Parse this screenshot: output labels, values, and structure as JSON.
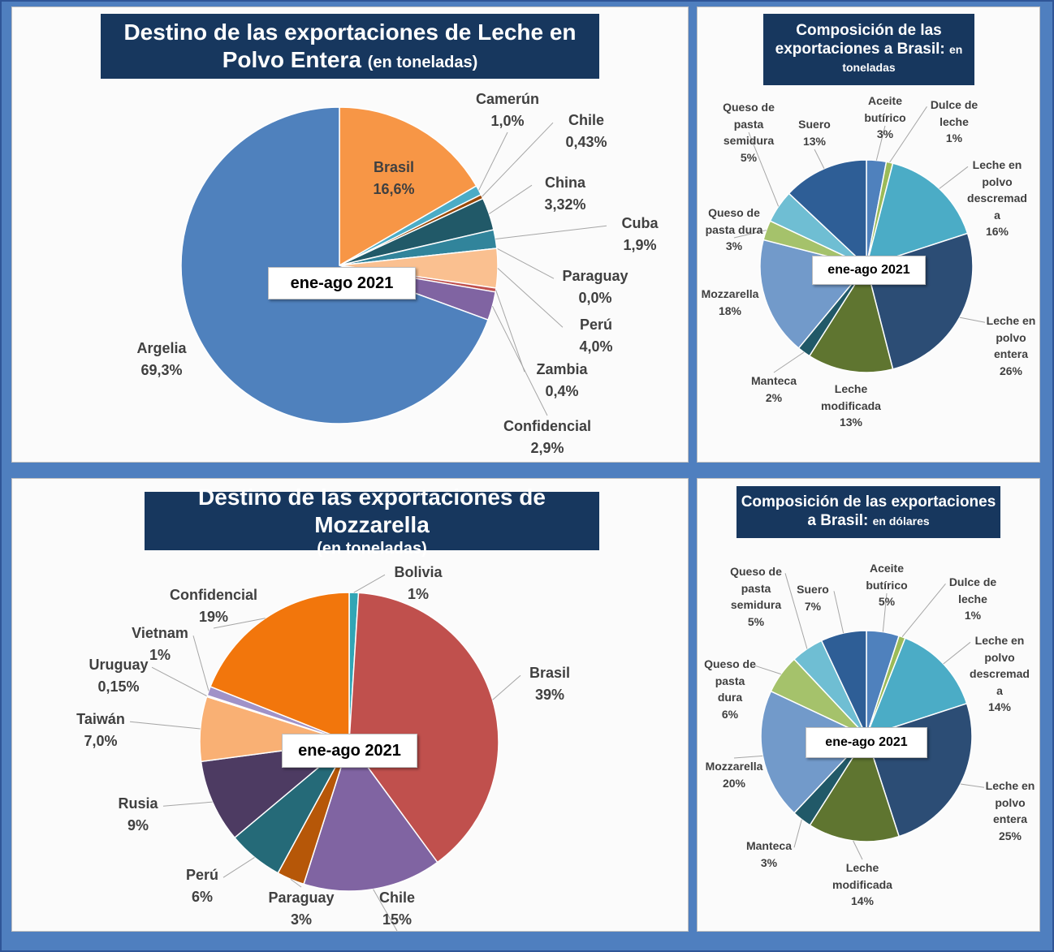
{
  "chart_data": [
    {
      "type": "pie",
      "title": "Destino de las exportaciones de Leche en Polvo Entera",
      "subtitle": "(en toneladas)",
      "annotation": "ene-ago 2021",
      "categories": [
        "Brasil",
        "Camerún",
        "Chile",
        "China",
        "Cuba",
        "Paraguay",
        "Perú",
        "Zambia",
        "Confidencial",
        "Argelia"
      ],
      "values": [
        16.6,
        1.0,
        0.43,
        3.32,
        1.9,
        0.0,
        4.0,
        0.4,
        2.9,
        69.3
      ],
      "value_labels": [
        "16,6%",
        "1,0%",
        "0,43%",
        "3,32%",
        "1,9%",
        "0,0%",
        "4,0%",
        "0,4%",
        "2,9%",
        "69,3%"
      ],
      "colors": [
        "#f79646",
        "#4bacc6",
        "#984807",
        "#215968",
        "#31849b",
        "#7f7f7f",
        "#fac090",
        "#c0504d",
        "#8064a2",
        "#4f81bd"
      ]
    },
    {
      "type": "pie",
      "title": "Composición  de las exportaciones  a Brasil:",
      "subtitle": "en toneladas",
      "annotation": "ene-ago 2021",
      "categories": [
        "Aceite butírico",
        "Dulce de leche",
        "Leche en polvo descremada",
        "Leche en polvo entera",
        "Leche modificada",
        "Manteca",
        "Mozzarella",
        "Queso de pasta dura",
        "Queso de pasta semidura",
        "Suero"
      ],
      "values": [
        3,
        1,
        16,
        26,
        13,
        2,
        18,
        3,
        5,
        13
      ],
      "value_labels": [
        "3%",
        "1%",
        "16%",
        "26%",
        "13%",
        "2%",
        "18%",
        "3%",
        "5%",
        "13%"
      ],
      "colors": [
        "#4f81bd",
        "#9bbb59",
        "#4bacc6",
        "#2c4d75",
        "#5f7530",
        "#215968",
        "#729aca",
        "#a5c26b",
        "#6fbed3",
        "#2e5e96"
      ]
    },
    {
      "type": "pie",
      "title": "Destino de las exportaciones de Mozzarella",
      "subtitle": "(en toneladas)",
      "annotation": "ene-ago 2021",
      "categories": [
        "Bolivia",
        "Brasil",
        "Chile",
        "Paraguay",
        "Perú",
        "Rusia",
        "Taiwán",
        "Uruguay",
        "Vietnam",
        "Confidencial"
      ],
      "values": [
        1,
        39,
        15,
        3,
        6,
        9,
        7.0,
        0.15,
        1,
        19
      ],
      "value_labels": [
        "1%",
        "39%",
        "15%",
        "3%",
        "6%",
        "9%",
        "7,0%",
        "0,15%",
        "1%",
        "19%"
      ],
      "colors": [
        "#31a5b5",
        "#c0504d",
        "#8064a2",
        "#b65708",
        "#256a78",
        "#4d3b62",
        "#f9b074",
        "#dcdcdc",
        "#a092c8",
        "#f2760c"
      ]
    },
    {
      "type": "pie",
      "title": "Composición  de las exportaciones  a Brasil:",
      "subtitle": "en dólares",
      "annotation": "ene-ago 2021",
      "categories": [
        "Aceite butírico",
        "Dulce de leche",
        "Leche en polvo descremada",
        "Leche en polvo entera",
        "Leche modificada",
        "Manteca",
        "Mozzarella",
        "Queso de pasta dura",
        "Queso de pasta semidura",
        "Suero"
      ],
      "values": [
        5,
        1,
        14,
        25,
        14,
        3,
        20,
        6,
        5,
        7
      ],
      "value_labels": [
        "5%",
        "1%",
        "14%",
        "25%",
        "14%",
        "3%",
        "20%",
        "6%",
        "5%",
        "7%"
      ],
      "colors": [
        "#4f81bd",
        "#9bbb59",
        "#4bacc6",
        "#2c4d75",
        "#5f7530",
        "#215968",
        "#729aca",
        "#a5c26b",
        "#6fbed3",
        "#2e5e96"
      ]
    }
  ]
}
